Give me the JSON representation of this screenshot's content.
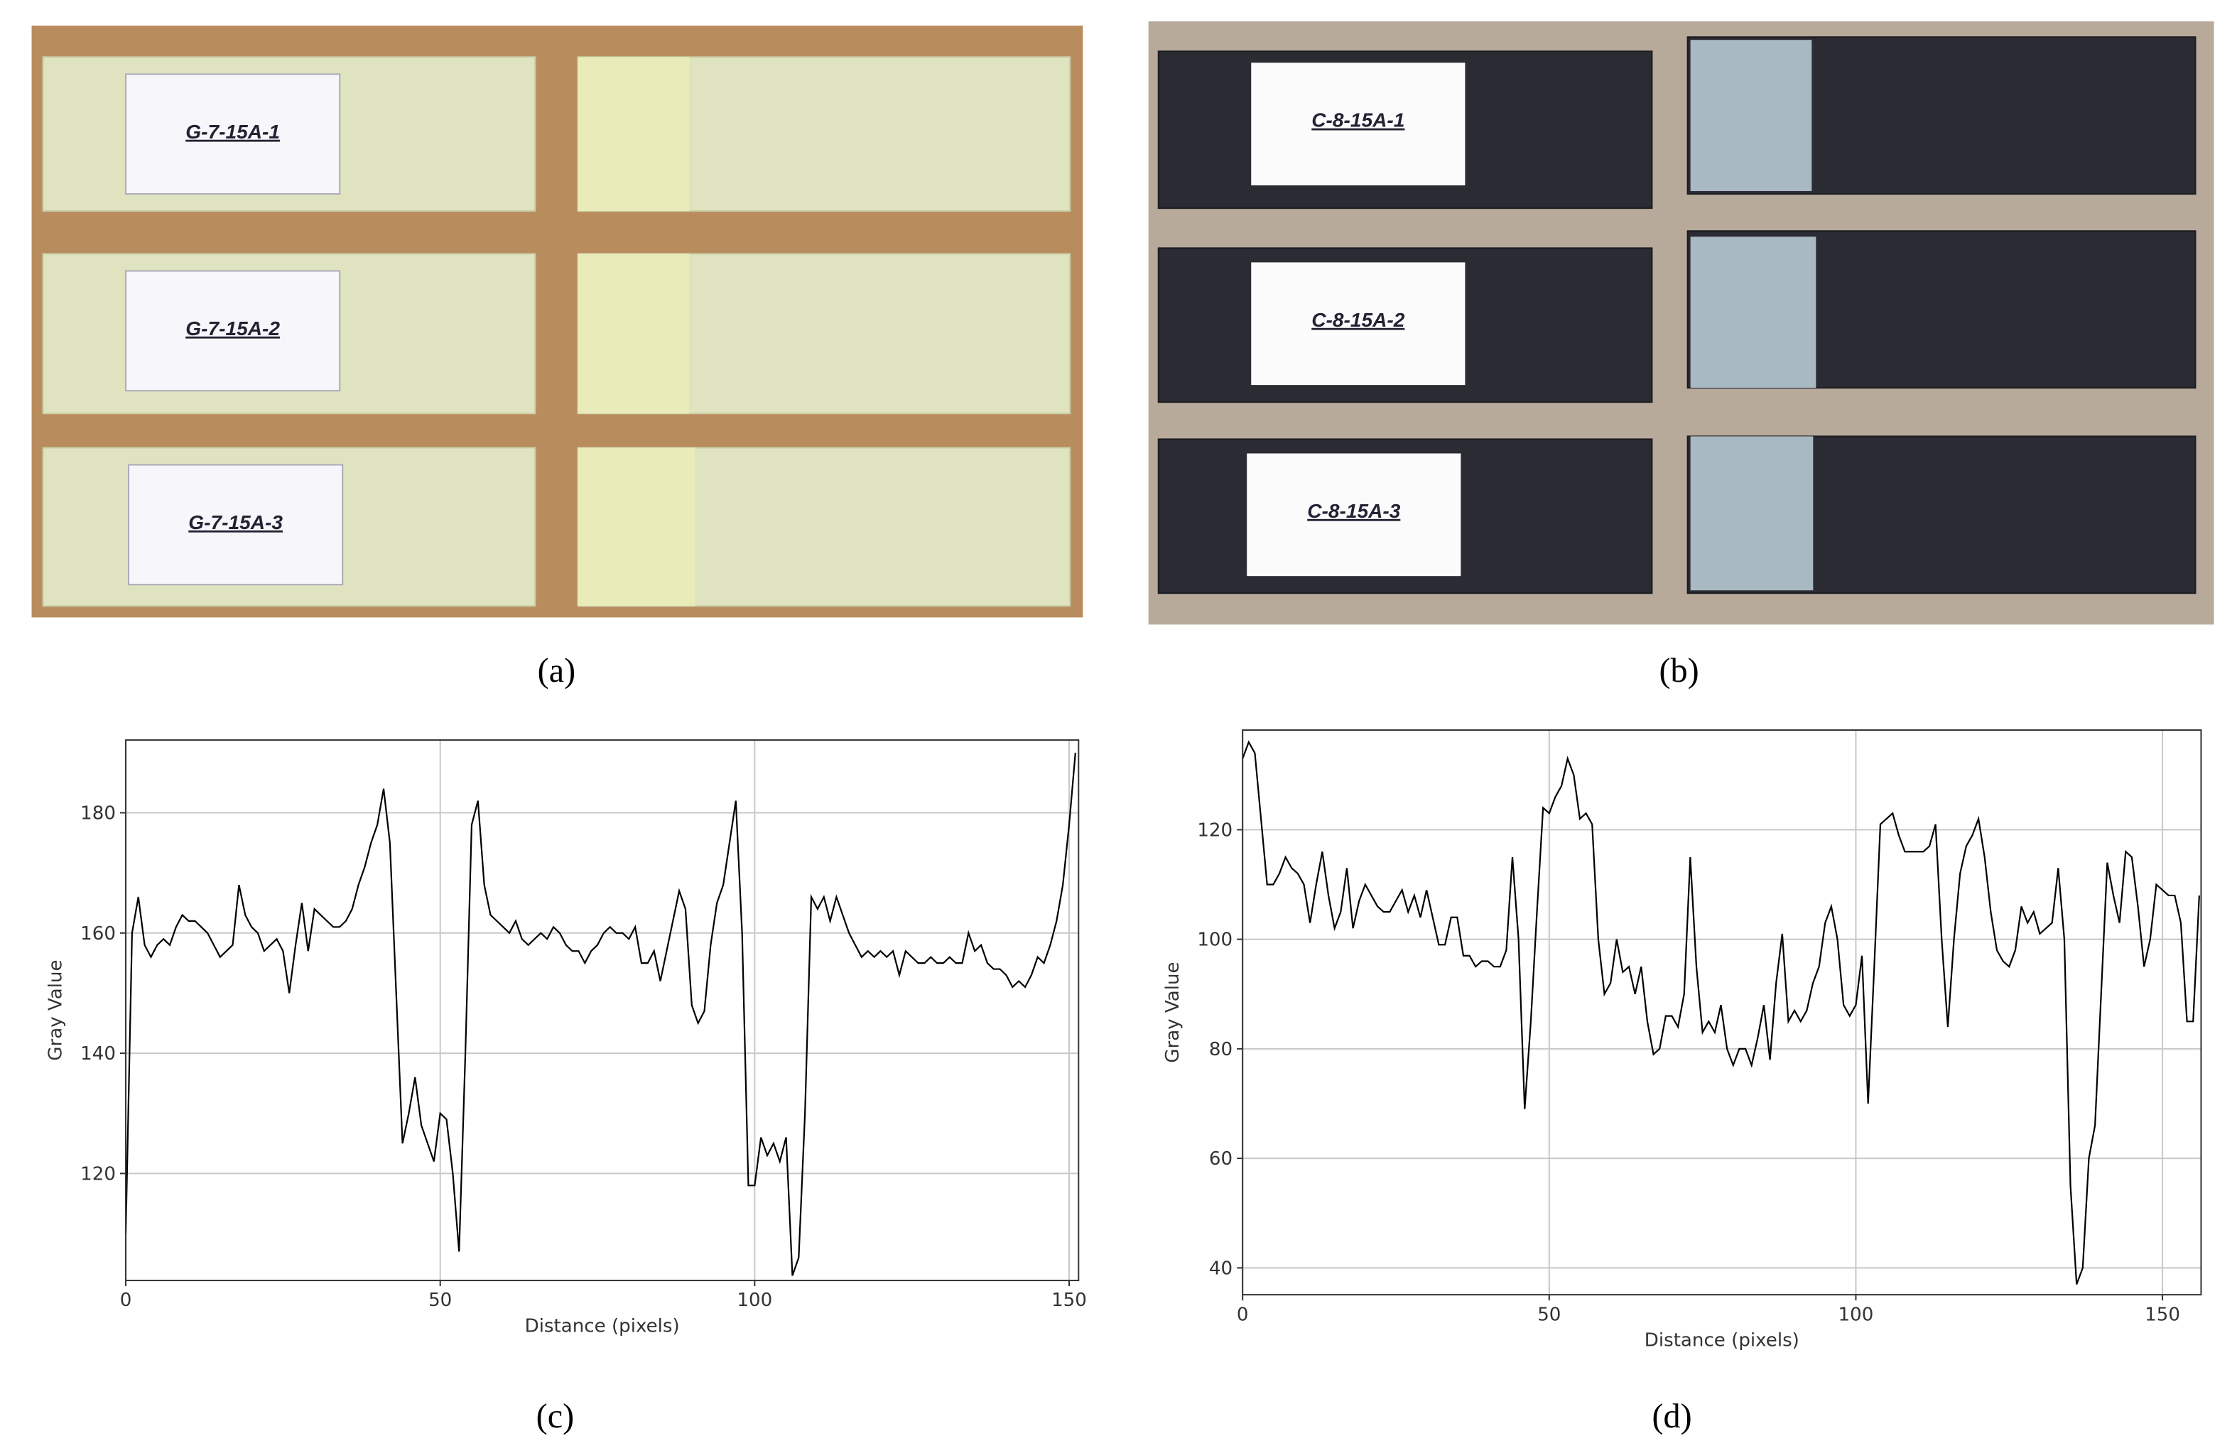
{
  "panel_labels": [
    "(a)",
    "(b)",
    "(c)",
    "(d)"
  ],
  "photos": [
    {
      "specimen_labels": [
        "G-7-15A-1",
        "G-7-15A-2",
        "G-7-15A-3"
      ]
    },
    {
      "specimen_labels": [
        "C-8-15A-1",
        "C-8-15A-2",
        "C-8-15A-3"
      ]
    }
  ],
  "chart_data": [
    {
      "type": "line",
      "x_label": "Distance (pixels)",
      "y_label": "Gray Value",
      "xlim": [
        0,
        151.5
      ],
      "ylim": [
        102.2,
        192.1
      ],
      "xticks": [
        0,
        50,
        100,
        150
      ],
      "yticks": [
        120,
        140,
        160,
        180
      ],
      "grid": true,
      "color": "#000000",
      "x": [
        0,
        1,
        2,
        3,
        4,
        5,
        6,
        7,
        8,
        9,
        10,
        11,
        12,
        13,
        14,
        15,
        16,
        17,
        18,
        19,
        20,
        21,
        22,
        23,
        24,
        25,
        26,
        27,
        28,
        29,
        30,
        31,
        32,
        33,
        34,
        35,
        36,
        37,
        38,
        39,
        40,
        41,
        42,
        43,
        44,
        45,
        46,
        47,
        48,
        49,
        50,
        51,
        52,
        53,
        54,
        55,
        56,
        57,
        58,
        59,
        60,
        61,
        62,
        63,
        64,
        65,
        66,
        67,
        68,
        69,
        70,
        71,
        72,
        73,
        74,
        75,
        76,
        77,
        78,
        79,
        80,
        81,
        82,
        83,
        84,
        85,
        86,
        87,
        88,
        89,
        90,
        91,
        92,
        93,
        94,
        95,
        96,
        97,
        98,
        99,
        100,
        101,
        102,
        103,
        104,
        105,
        106,
        107,
        108,
        109,
        110,
        111,
        112,
        113,
        114,
        115,
        116,
        117,
        118,
        119,
        120,
        121,
        122,
        123,
        124,
        125,
        126,
        127,
        128,
        129,
        130,
        131,
        132,
        133,
        134,
        135,
        136,
        137,
        138,
        139,
        140,
        141,
        142,
        143,
        144,
        145,
        146,
        147,
        148,
        149,
        150,
        151
      ],
      "values": [
        110,
        160,
        166,
        158,
        156,
        158,
        159,
        158,
        161,
        163,
        162,
        162,
        161,
        160,
        158,
        156,
        157,
        158,
        168,
        163,
        161,
        160,
        157,
        158,
        159,
        157,
        150,
        158,
        165,
        157,
        164,
        163,
        162,
        161,
        161,
        162,
        164,
        168,
        171,
        175,
        178,
        184,
        175,
        150,
        125,
        130,
        136,
        128,
        125,
        122,
        130,
        129,
        120,
        107,
        140,
        178,
        182,
        168,
        163,
        162,
        161,
        160,
        162,
        159,
        158,
        159,
        160,
        159,
        161,
        160,
        158,
        157,
        157,
        155,
        157,
        158,
        160,
        161,
        160,
        160,
        159,
        161,
        155,
        155,
        157,
        152,
        157,
        162,
        167,
        164,
        148,
        145,
        147,
        158,
        165,
        168,
        175,
        182,
        160,
        118,
        118,
        126,
        123,
        125,
        122,
        126,
        103,
        106,
        130,
        166,
        164,
        166,
        162,
        166,
        163,
        160,
        158,
        156,
        157,
        156,
        157,
        156,
        157,
        153,
        157,
        156,
        155,
        155,
        156,
        155,
        155,
        156,
        155,
        155,
        160,
        157,
        158,
        155,
        154,
        154,
        153,
        151,
        152,
        151,
        153,
        156,
        155,
        158,
        162,
        168,
        178,
        190
      ]
    },
    {
      "type": "line",
      "x_label": "Distance (pixels)",
      "y_label": "Gray Value",
      "xlim": [
        0,
        156.3
      ],
      "ylim": [
        35.1,
        138.2
      ],
      "xticks": [
        0,
        50,
        100,
        150
      ],
      "yticks": [
        40,
        60,
        80,
        100,
        120
      ],
      "grid": true,
      "color": "#000000",
      "x": [
        0,
        1,
        2,
        3,
        4,
        5,
        6,
        7,
        8,
        9,
        10,
        11,
        12,
        13,
        14,
        15,
        16,
        17,
        18,
        19,
        20,
        21,
        22,
        23,
        24,
        25,
        26,
        27,
        28,
        29,
        30,
        31,
        32,
        33,
        34,
        35,
        36,
        37,
        38,
        39,
        40,
        41,
        42,
        43,
        44,
        45,
        46,
        47,
        48,
        49,
        50,
        51,
        52,
        53,
        54,
        55,
        56,
        57,
        58,
        59,
        60,
        61,
        62,
        63,
        64,
        65,
        66,
        67,
        68,
        69,
        70,
        71,
        72,
        73,
        74,
        75,
        76,
        77,
        78,
        79,
        80,
        81,
        82,
        83,
        84,
        85,
        86,
        87,
        88,
        89,
        90,
        91,
        92,
        93,
        94,
        95,
        96,
        97,
        98,
        99,
        100,
        101,
        102,
        103,
        104,
        105,
        106,
        107,
        108,
        109,
        110,
        111,
        112,
        113,
        114,
        115,
        116,
        117,
        118,
        119,
        120,
        121,
        122,
        123,
        124,
        125,
        126,
        127,
        128,
        129,
        130,
        131,
        132,
        133,
        134,
        135,
        136,
        137,
        138,
        139,
        140,
        141,
        142,
        143,
        144,
        145,
        146,
        147,
        148,
        149,
        150,
        151,
        152,
        153,
        154,
        155,
        156
      ],
      "values": [
        133,
        136,
        134,
        122,
        110,
        110,
        112,
        115,
        113,
        112,
        110,
        103,
        110,
        116,
        108,
        102,
        105,
        113,
        102,
        107,
        110,
        108,
        106,
        105,
        105,
        107,
        109,
        105,
        108,
        104,
        109,
        104,
        99,
        99,
        104,
        104,
        97,
        97,
        95,
        96,
        96,
        95,
        95,
        98,
        115,
        100,
        69,
        85,
        105,
        124,
        123,
        126,
        128,
        133,
        130,
        122,
        123,
        121,
        100,
        90,
        92,
        100,
        94,
        95,
        90,
        95,
        85,
        79,
        80,
        86,
        86,
        84,
        90,
        115,
        95,
        83,
        85,
        83,
        88,
        80,
        77,
        80,
        80,
        77,
        82,
        88,
        78,
        92,
        101,
        85,
        87,
        85,
        87,
        92,
        95,
        103,
        106,
        100,
        88,
        86,
        88,
        97,
        70,
        95,
        121,
        122,
        123,
        119,
        116,
        116,
        116,
        116,
        117,
        121,
        100,
        84,
        100,
        112,
        117,
        119,
        122,
        115,
        105,
        98,
        96,
        95,
        98,
        106,
        103,
        105,
        101,
        102,
        103,
        113,
        100,
        55,
        37,
        40,
        60,
        66,
        90,
        114,
        108,
        103,
        116,
        115,
        106,
        95,
        100,
        110,
        109,
        108,
        108,
        103,
        85,
        85,
        108
      ]
    }
  ]
}
